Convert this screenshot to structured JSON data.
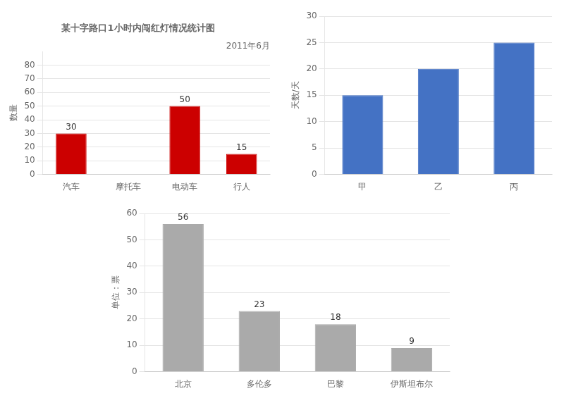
{
  "chart_data": [
    {
      "type": "bar",
      "title": "某十字路口1小时内闯红灯情况统计图",
      "subtitle": "2011年6月",
      "ylabel": "数量",
      "categories": [
        "汽车",
        "摩托车",
        "电动车",
        "行人"
      ],
      "values": [
        30,
        0,
        50,
        15
      ],
      "value_labels": [
        "30",
        null,
        "50",
        "15"
      ],
      "color": "#cc0000",
      "ylim": [
        0,
        90
      ],
      "yticks": [
        0,
        10,
        20,
        30,
        40,
        50,
        60,
        70,
        80
      ],
      "grid": true,
      "data_labels": true
    },
    {
      "type": "bar",
      "ylabel": "天数/天",
      "categories": [
        "甲",
        "乙",
        "丙"
      ],
      "values": [
        15,
        20,
        25
      ],
      "color": "#4472c4",
      "ylim": [
        0,
        30
      ],
      "yticks": [
        0,
        5,
        10,
        15,
        20,
        25,
        30
      ],
      "grid": true
    },
    {
      "type": "bar",
      "ylabel": "单位：票",
      "categories": [
        "北京",
        "多伦多",
        "巴黎",
        "伊斯坦布尔"
      ],
      "values": [
        56,
        23,
        18,
        9
      ],
      "color": "#aaaaaa",
      "ylim": [
        0,
        60
      ],
      "yticks": [
        0,
        10,
        20,
        30,
        40,
        50,
        60
      ],
      "grid": true,
      "data_labels": true
    }
  ]
}
